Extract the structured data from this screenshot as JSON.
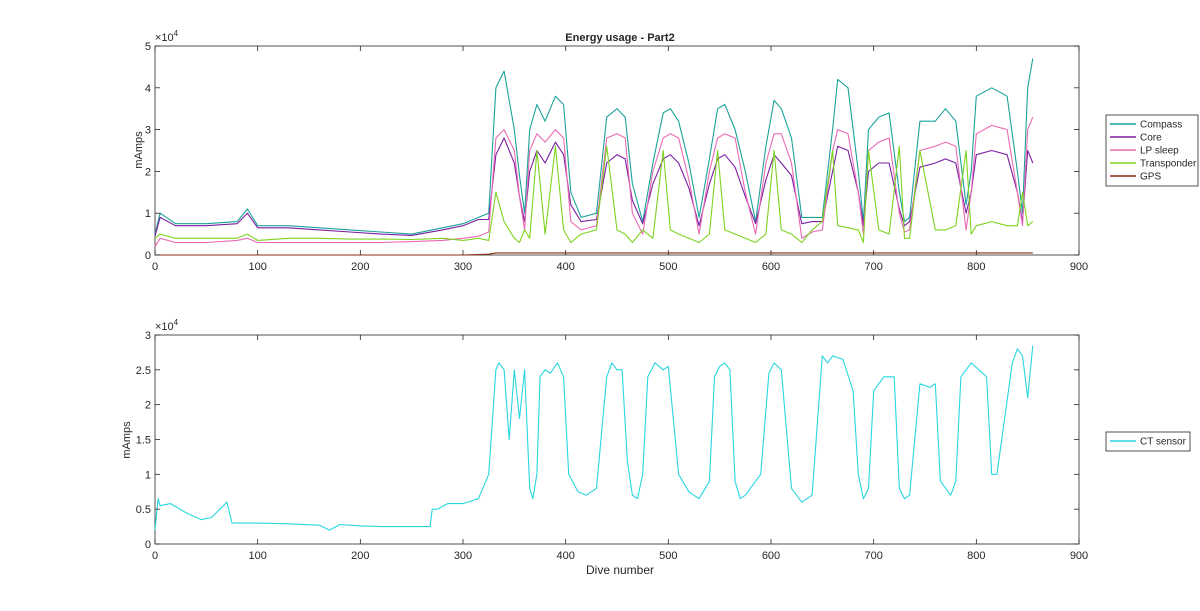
{
  "figure": {
    "title": "Energy usage - Part2"
  },
  "chart_data": [
    {
      "type": "line",
      "title": "Energy usage - Part2",
      "xlabel": "",
      "ylabel": "mAmps",
      "xlim": [
        0,
        900
      ],
      "ylim": [
        0,
        50000
      ],
      "x_ticks": [
        0,
        100,
        200,
        300,
        400,
        500,
        600,
        700,
        800,
        900
      ],
      "y_ticks": [
        0,
        10000,
        20000,
        30000,
        40000,
        50000
      ],
      "y_tick_labels": [
        "0",
        "1",
        "2",
        "3",
        "4",
        "5"
      ],
      "y_exponent": "×10",
      "y_exponent_power": "4",
      "legend_position": "outside-right",
      "grid": false,
      "x": [
        0,
        5,
        20,
        50,
        80,
        90,
        100,
        130,
        160,
        190,
        220,
        250,
        280,
        300,
        315,
        325,
        332,
        340,
        350,
        355,
        360,
        365,
        372,
        380,
        390,
        398,
        405,
        415,
        430,
        440,
        450,
        458,
        465,
        475,
        485,
        495,
        502,
        510,
        520,
        530,
        540,
        548,
        555,
        565,
        575,
        585,
        595,
        603,
        610,
        620,
        630,
        640,
        650,
        660,
        665,
        675,
        685,
        690,
        695,
        705,
        715,
        725,
        730,
        735,
        745,
        760,
        770,
        780,
        790,
        795,
        800,
        815,
        830,
        840,
        845,
        850,
        855
      ],
      "series": [
        {
          "name": "Compass",
          "color": "#1aa39a",
          "values": [
            5000,
            10000,
            7500,
            7500,
            8000,
            11000,
            7000,
            7000,
            6500,
            6000,
            5500,
            5000,
            6500,
            7500,
            9000,
            10000,
            40000,
            44000,
            30000,
            19000,
            10000,
            30000,
            36000,
            32000,
            38000,
            36000,
            15000,
            9000,
            10000,
            33000,
            35000,
            33000,
            17000,
            8000,
            22000,
            34000,
            35000,
            32000,
            22000,
            9000,
            23000,
            35000,
            36000,
            30000,
            20000,
            8000,
            26000,
            37000,
            35000,
            28000,
            9000,
            9000,
            9000,
            30000,
            42000,
            40000,
            20000,
            8000,
            30000,
            33000,
            34000,
            15000,
            8000,
            9000,
            32000,
            32000,
            35000,
            32000,
            12000,
            20000,
            38000,
            40000,
            38000,
            20000,
            10000,
            40000,
            47000
          ]
        },
        {
          "name": "Core",
          "color": "#7b1fa2",
          "values": [
            4500,
            9000,
            7000,
            7000,
            7500,
            10000,
            6500,
            6500,
            6000,
            5500,
            5000,
            4700,
            6000,
            7000,
            8500,
            8500,
            24000,
            28000,
            22000,
            14000,
            8000,
            20000,
            25000,
            22000,
            27000,
            24000,
            12000,
            8000,
            8500,
            22000,
            24000,
            23000,
            13000,
            7500,
            17000,
            23000,
            24000,
            22000,
            16000,
            7000,
            17000,
            23000,
            24000,
            21000,
            14000,
            7500,
            18000,
            24000,
            22000,
            19000,
            7500,
            8000,
            8000,
            20000,
            26000,
            25000,
            15000,
            7000,
            20000,
            22000,
            22000,
            11000,
            7000,
            8000,
            21000,
            22000,
            23000,
            22000,
            10000,
            15000,
            24000,
            25000,
            24000,
            15000,
            8000,
            25000,
            22000
          ]
        },
        {
          "name": "LP sleep",
          "color": "#e96ab5",
          "values": [
            2000,
            4000,
            3000,
            3000,
            3500,
            4000,
            3000,
            3000,
            3000,
            3000,
            3000,
            3200,
            3500,
            4000,
            4500,
            5500,
            28000,
            30000,
            25000,
            14000,
            6000,
            25000,
            29000,
            27000,
            30000,
            28000,
            8000,
            6000,
            7000,
            28000,
            29000,
            28000,
            10000,
            5000,
            20000,
            28000,
            29000,
            28000,
            18000,
            5000,
            20000,
            28000,
            29000,
            28000,
            15000,
            5000,
            22000,
            29000,
            29000,
            22000,
            4000,
            5500,
            6000,
            25000,
            30000,
            29000,
            15000,
            5000,
            25000,
            27000,
            28000,
            10000,
            5500,
            6000,
            25000,
            26000,
            27000,
            26000,
            6000,
            15000,
            29000,
            31000,
            30000,
            15000,
            7000,
            30000,
            33000
          ]
        },
        {
          "name": "Transponder",
          "color": "#7ed321",
          "values": [
            4000,
            5000,
            4000,
            4000,
            4000,
            5000,
            3500,
            4000,
            4000,
            3800,
            3800,
            3700,
            4000,
            3500,
            4000,
            3500,
            15000,
            8000,
            4000,
            3000,
            6000,
            4000,
            25000,
            5000,
            26000,
            6000,
            3000,
            5000,
            6000,
            26000,
            6000,
            5000,
            3000,
            6000,
            4000,
            25000,
            6000,
            5000,
            4000,
            3000,
            5000,
            25000,
            6000,
            5000,
            4000,
            3000,
            5000,
            25000,
            6000,
            5000,
            3000,
            6000,
            8000,
            25000,
            7000,
            6500,
            6000,
            3000,
            25000,
            6000,
            5000,
            26000,
            4000,
            4000,
            25000,
            6000,
            6000,
            7000,
            25000,
            5000,
            7000,
            8000,
            7000,
            7000,
            15000,
            7000,
            8000
          ]
        },
        {
          "name": "GPS",
          "color": "#8b2e0f",
          "values": [
            0,
            0,
            0,
            0,
            0,
            0,
            0,
            0,
            0,
            0,
            0,
            0,
            0,
            0,
            100,
            200,
            500,
            500,
            500,
            500,
            500,
            500,
            500,
            500,
            500,
            500,
            500,
            500,
            500,
            500,
            500,
            500,
            500,
            500,
            500,
            500,
            500,
            500,
            500,
            500,
            500,
            500,
            500,
            500,
            500,
            500,
            500,
            500,
            500,
            500,
            500,
            500,
            500,
            500,
            500,
            500,
            500,
            500,
            500,
            500,
            500,
            500,
            500,
            500,
            500,
            500,
            500,
            500,
            500,
            500,
            500,
            500,
            500,
            500,
            500,
            500,
            500
          ]
        }
      ]
    },
    {
      "type": "line",
      "title": "",
      "xlabel": "Dive number",
      "ylabel": "mAmps",
      "xlim": [
        0,
        900
      ],
      "ylim": [
        0,
        30000
      ],
      "x_ticks": [
        0,
        100,
        200,
        300,
        400,
        500,
        600,
        700,
        800,
        900
      ],
      "y_ticks": [
        0,
        5000,
        10000,
        15000,
        20000,
        25000,
        30000
      ],
      "y_tick_labels": [
        "0",
        "0.5",
        "1",
        "1.5",
        "2",
        "2.5",
        "3"
      ],
      "y_exponent": "×10",
      "y_exponent_power": "4",
      "legend_position": "outside-right",
      "grid": false,
      "x": [
        0,
        3,
        5,
        15,
        30,
        45,
        55,
        70,
        75,
        80,
        100,
        130,
        160,
        170,
        180,
        200,
        220,
        250,
        268,
        270,
        275,
        285,
        300,
        315,
        325,
        332,
        335,
        340,
        345,
        350,
        355,
        360,
        365,
        368,
        372,
        375,
        380,
        385,
        392,
        398,
        403,
        412,
        420,
        430,
        440,
        445,
        450,
        455,
        460,
        465,
        470,
        475,
        480,
        487,
        495,
        500,
        510,
        520,
        530,
        540,
        545,
        550,
        555,
        560,
        565,
        570,
        575,
        590,
        598,
        603,
        610,
        620,
        630,
        640,
        650,
        655,
        660,
        670,
        680,
        685,
        690,
        695,
        700,
        710,
        720,
        725,
        730,
        735,
        745,
        755,
        760,
        765,
        775,
        780,
        785,
        790,
        795,
        810,
        815,
        820,
        835,
        840,
        845,
        850,
        855
      ],
      "series": [
        {
          "name": "CT sensor",
          "color": "#29d6e0",
          "values": [
            2000,
            6500,
            5500,
            5800,
            4500,
            3500,
            3800,
            6000,
            3000,
            3000,
            3000,
            2900,
            2700,
            2000,
            2800,
            2600,
            2500,
            2500,
            2500,
            5000,
            5000,
            5800,
            5800,
            6500,
            10000,
            25000,
            26000,
            25000,
            15000,
            25000,
            18000,
            25000,
            8000,
            6500,
            10000,
            24000,
            25000,
            24500,
            26000,
            24000,
            10000,
            7500,
            7000,
            8000,
            24000,
            26000,
            25000,
            25000,
            12000,
            7000,
            6500,
            10000,
            24000,
            26000,
            25000,
            25500,
            10000,
            7500,
            6500,
            9000,
            24000,
            25500,
            26000,
            25000,
            9000,
            6500,
            7000,
            10000,
            24500,
            26000,
            25000,
            8000,
            6000,
            7000,
            27000,
            26000,
            27000,
            26500,
            22000,
            10000,
            6500,
            8000,
            22000,
            24000,
            24000,
            8000,
            6500,
            7000,
            23000,
            22500,
            23000,
            9000,
            7000,
            9000,
            24000,
            25000,
            26000,
            24000,
            10000,
            10000,
            26000,
            28000,
            27000,
            21000,
            28500
          ]
        }
      ]
    }
  ]
}
